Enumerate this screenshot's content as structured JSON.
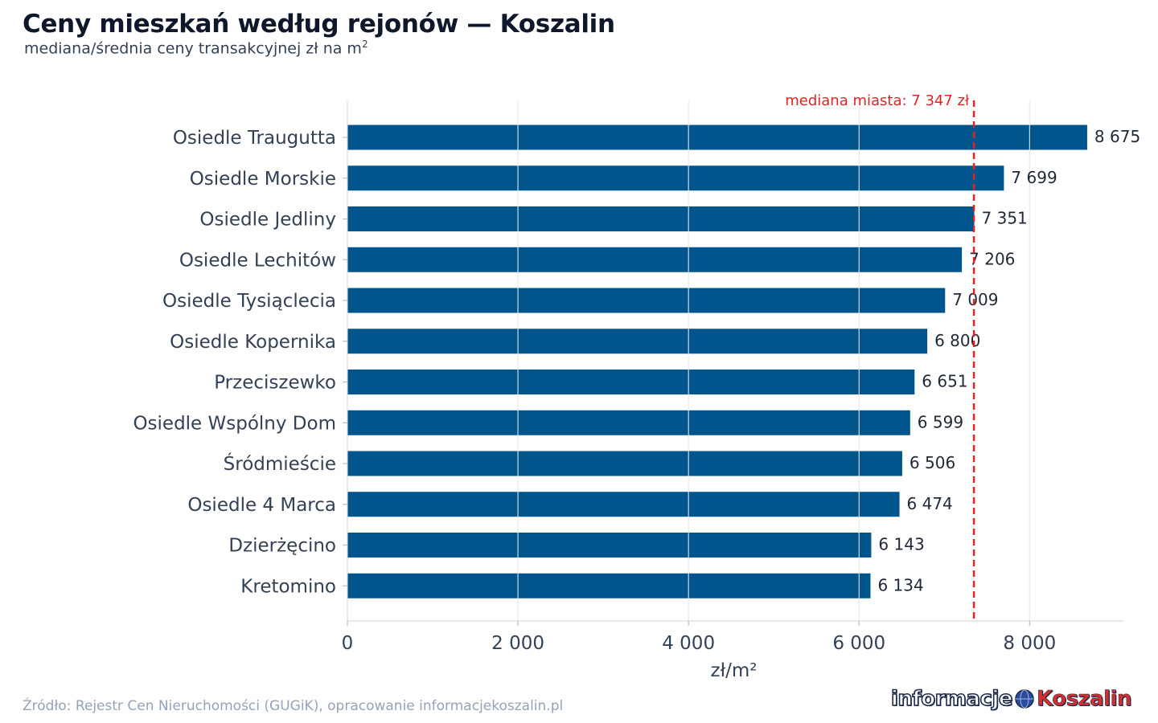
{
  "header": {
    "title": "Ceny mieszkań według rejonów — Koszalin",
    "subtitle": "mediana/średnia ceny transakcyjnej zł na m",
    "subtitle_sup": "2"
  },
  "chart_data": {
    "type": "bar",
    "orientation": "horizontal",
    "categories": [
      "Osiedle Traugutta",
      "Osiedle Morskie",
      "Osiedle Jedliny",
      "Osiedle Lechitów",
      "Osiedle Tysiąclecia",
      "Osiedle Kopernika",
      "Przeciszewko",
      "Osiedle Wspólny Dom",
      "Śródmieście",
      "Osiedle 4 Marca",
      "Dzierżęcino",
      "Kretomino"
    ],
    "values": [
      8675,
      7699,
      7351,
      7206,
      7009,
      6800,
      6651,
      6599,
      6506,
      6474,
      6143,
      6134
    ],
    "value_labels": [
      "8 675",
      "7 699",
      "7 351",
      "7 206",
      "7 009",
      "6 800",
      "6 651",
      "6 599",
      "6 506",
      "6 474",
      "6 143",
      "6 134"
    ],
    "xlabel": "zł/m²",
    "xlim": [
      0,
      9100
    ],
    "xticks": [
      0,
      2000,
      4000,
      6000,
      8000
    ],
    "xtick_labels": [
      "0",
      "2 000",
      "4 000",
      "6 000",
      "8 000"
    ],
    "reference_line": {
      "value": 7347,
      "label": "mediana miasta: 7 347 zł",
      "color": "#dc2626",
      "style": "dashed"
    },
    "bar_color": "#00558c",
    "grid": "vertical"
  },
  "footer": {
    "source": "Źródło: Rejestr Cen Nieruchomości (GUGiK), opracowanie informacjekoszalin.pl",
    "logo_part1": "informacje",
    "logo_part2": "Koszalin"
  }
}
